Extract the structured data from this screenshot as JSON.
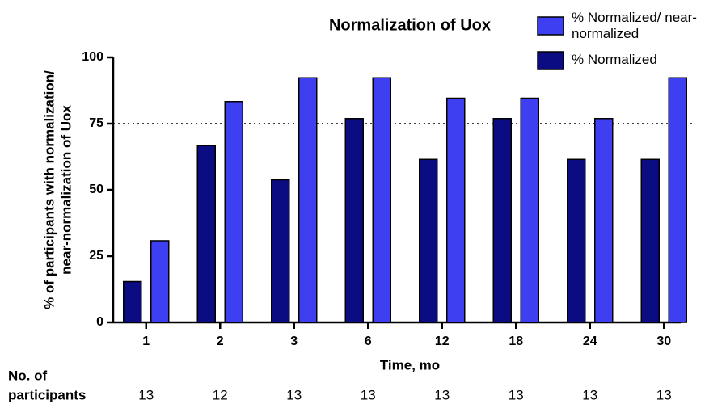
{
  "chart_data": {
    "type": "bar",
    "title": "Normalization of Uox",
    "ylabel": [
      "% of participants with normalization/",
      "near-normalization of Uox"
    ],
    "xlabel": "Time, mo",
    "categories": [
      "1",
      "2",
      "3",
      "6",
      "12",
      "18",
      "24",
      "30"
    ],
    "series": [
      {
        "name": "% Normalized",
        "color": "#0b0b82",
        "values": [
          15.4,
          66.7,
          53.8,
          76.9,
          61.5,
          76.9,
          61.5,
          61.5
        ]
      },
      {
        "name": "% Normalized/ near-normalized",
        "color": "#3f3ff2",
        "values": [
          30.8,
          83.3,
          92.3,
          92.3,
          84.6,
          84.6,
          76.9,
          92.3
        ]
      }
    ],
    "ylim": [
      0,
      100
    ],
    "yticks": [
      0,
      25,
      50,
      75,
      100
    ],
    "reference_line": 75,
    "participants_label": [
      "No. of",
      "participants"
    ],
    "participants": [
      13,
      12,
      13,
      13,
      13,
      13,
      13,
      13
    ]
  }
}
